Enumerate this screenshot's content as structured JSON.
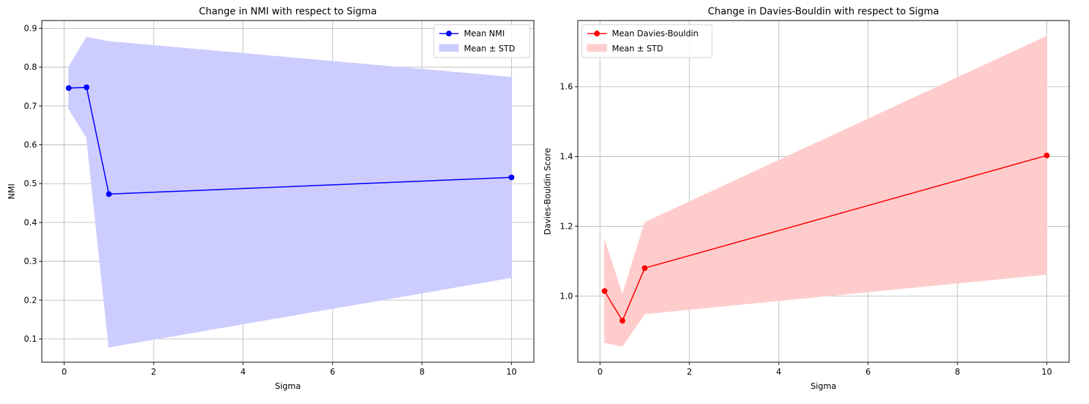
{
  "chart_data": [
    {
      "type": "line",
      "title": "Change in NMI with respect to Sigma",
      "xlabel": "Sigma",
      "ylabel": "NMI",
      "xlim": [
        -0.5,
        10.5
      ],
      "ylim": [
        0.04,
        0.92
      ],
      "xticks": [
        0,
        2,
        4,
        6,
        8,
        10
      ],
      "yticks": [
        0.1,
        0.2,
        0.3,
        0.4,
        0.5,
        0.6,
        0.7,
        0.8,
        0.9
      ],
      "xtick_labels": [
        "0",
        "2",
        "4",
        "6",
        "8",
        "10"
      ],
      "ytick_labels": [
        "0.1",
        "0.2",
        "0.3",
        "0.4",
        "0.5",
        "0.6",
        "0.7",
        "0.8",
        "0.9"
      ],
      "grid": true,
      "legend_position": "top-right",
      "color": "#0000ff",
      "band_color": "#ccccff",
      "x": [
        0.1,
        0.5,
        1,
        10
      ],
      "series": [
        {
          "name": "Mean NMI",
          "values": [
            0.746,
            0.748,
            0.473,
            0.516
          ]
        }
      ],
      "band": {
        "name": "Mean ± STD",
        "lower": [
          0.693,
          0.619,
          0.079,
          0.258
        ],
        "upper": [
          0.8,
          0.877,
          0.866,
          0.774
        ]
      }
    },
    {
      "type": "line",
      "title": "Change in Davies-Bouldin with respect to Sigma",
      "xlabel": "Sigma",
      "ylabel": "Davies-Bouldin Score",
      "xlim": [
        -0.5,
        10.5
      ],
      "ylim": [
        0.81,
        1.79
      ],
      "xticks": [
        0,
        2,
        4,
        6,
        8,
        10
      ],
      "yticks": [
        1.0,
        1.2,
        1.4,
        1.6
      ],
      "xtick_labels": [
        "0",
        "2",
        "4",
        "6",
        "8",
        "10"
      ],
      "ytick_labels": [
        "1.0",
        "1.2",
        "1.4",
        "1.6"
      ],
      "grid": true,
      "legend_position": "top-left",
      "color": "#ff0000",
      "band_color": "#ffcccc",
      "x": [
        0.1,
        0.5,
        1,
        10
      ],
      "series": [
        {
          "name": "Mean Davies-Bouldin",
          "values": [
            1.014,
            0.929,
            1.08,
            1.403
          ]
        }
      ],
      "band": {
        "name": "Mean ± STD",
        "lower": [
          0.866,
          0.856,
          0.949,
          1.062
        ],
        "upper": [
          1.16,
          1.003,
          1.211,
          1.745
        ]
      }
    }
  ]
}
